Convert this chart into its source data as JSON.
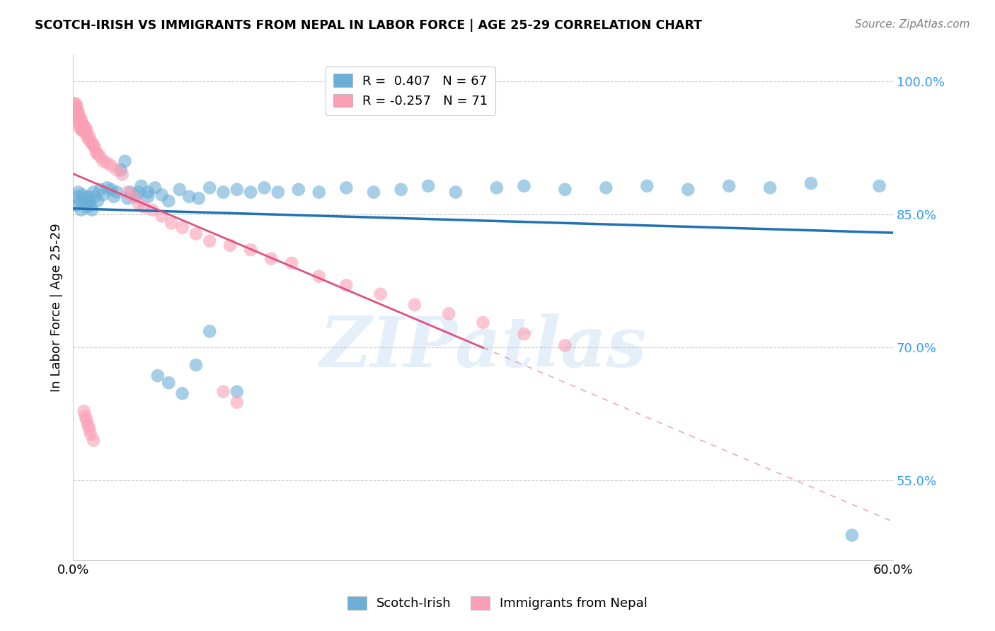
{
  "title": "SCOTCH-IRISH VS IMMIGRANTS FROM NEPAL IN LABOR FORCE | AGE 25-29 CORRELATION CHART",
  "source": "Source: ZipAtlas.com",
  "ylabel": "In Labor Force | Age 25-29",
  "xlim": [
    0.0,
    0.6
  ],
  "ylim": [
    0.46,
    1.03
  ],
  "yticks": [
    0.55,
    0.7,
    0.85,
    1.0
  ],
  "ytick_labels": [
    "55.0%",
    "70.0%",
    "85.0%",
    "100.0%"
  ],
  "xtick_labels": [
    "0.0%",
    "",
    "",
    "",
    "",
    "",
    "60.0%"
  ],
  "legend_blue_label": "R =  0.407   N = 67",
  "legend_pink_label": "R = -0.257   N = 71",
  "blue_color": "#6baed6",
  "blue_line_color": "#2171b5",
  "pink_color": "#fa9fb5",
  "pink_line_color": "#e05080",
  "watermark": "ZIPatlas",
  "blue_scatter_x": [
    0.002,
    0.003,
    0.004,
    0.005,
    0.006,
    0.007,
    0.008,
    0.009,
    0.01,
    0.011,
    0.012,
    0.013,
    0.014,
    0.015,
    0.016,
    0.018,
    0.02,
    0.022,
    0.025,
    0.028,
    0.032,
    0.035,
    0.038,
    0.042,
    0.046,
    0.05,
    0.055,
    0.06,
    0.065,
    0.07,
    0.078,
    0.085,
    0.092,
    0.1,
    0.11,
    0.12,
    0.13,
    0.14,
    0.15,
    0.165,
    0.18,
    0.2,
    0.22,
    0.24,
    0.26,
    0.28,
    0.31,
    0.33,
    0.36,
    0.39,
    0.42,
    0.45,
    0.48,
    0.51,
    0.54,
    0.57,
    0.59,
    0.03,
    0.04,
    0.048,
    0.055,
    0.062,
    0.07,
    0.08,
    0.09,
    0.1,
    0.12
  ],
  "blue_scatter_y": [
    0.86,
    0.87,
    0.875,
    0.865,
    0.855,
    0.872,
    0.868,
    0.862,
    0.858,
    0.87,
    0.865,
    0.86,
    0.855,
    0.875,
    0.87,
    0.865,
    0.878,
    0.872,
    0.88,
    0.878,
    0.875,
    0.9,
    0.91,
    0.875,
    0.87,
    0.882,
    0.875,
    0.88,
    0.872,
    0.865,
    0.878,
    0.87,
    0.868,
    0.88,
    0.875,
    0.878,
    0.875,
    0.88,
    0.875,
    0.878,
    0.875,
    0.88,
    0.875,
    0.878,
    0.882,
    0.875,
    0.88,
    0.882,
    0.878,
    0.88,
    0.882,
    0.878,
    0.882,
    0.88,
    0.885,
    0.488,
    0.882,
    0.87,
    0.868,
    0.875,
    0.87,
    0.668,
    0.66,
    0.648,
    0.68,
    0.718,
    0.65
  ],
  "pink_scatter_x": [
    0.001,
    0.001,
    0.002,
    0.002,
    0.002,
    0.003,
    0.003,
    0.003,
    0.003,
    0.004,
    0.004,
    0.004,
    0.005,
    0.005,
    0.005,
    0.006,
    0.006,
    0.006,
    0.007,
    0.007,
    0.008,
    0.008,
    0.009,
    0.009,
    0.01,
    0.01,
    0.011,
    0.012,
    0.013,
    0.014,
    0.015,
    0.016,
    0.017,
    0.018,
    0.02,
    0.022,
    0.025,
    0.028,
    0.032,
    0.036,
    0.04,
    0.044,
    0.048,
    0.052,
    0.058,
    0.065,
    0.072,
    0.08,
    0.09,
    0.1,
    0.115,
    0.13,
    0.145,
    0.16,
    0.18,
    0.2,
    0.225,
    0.25,
    0.275,
    0.3,
    0.33,
    0.36,
    0.12,
    0.11,
    0.008,
    0.009,
    0.01,
    0.011,
    0.012,
    0.013,
    0.015
  ],
  "pink_scatter_y": [
    0.97,
    0.975,
    0.965,
    0.97,
    0.975,
    0.958,
    0.965,
    0.968,
    0.972,
    0.955,
    0.96,
    0.965,
    0.948,
    0.952,
    0.958,
    0.945,
    0.95,
    0.958,
    0.945,
    0.952,
    0.945,
    0.95,
    0.942,
    0.948,
    0.94,
    0.945,
    0.935,
    0.938,
    0.932,
    0.93,
    0.928,
    0.925,
    0.92,
    0.918,
    0.915,
    0.91,
    0.908,
    0.905,
    0.9,
    0.895,
    0.875,
    0.87,
    0.862,
    0.858,
    0.855,
    0.848,
    0.84,
    0.835,
    0.828,
    0.82,
    0.815,
    0.81,
    0.8,
    0.795,
    0.78,
    0.77,
    0.76,
    0.748,
    0.738,
    0.728,
    0.715,
    0.702,
    0.638,
    0.65,
    0.628,
    0.622,
    0.618,
    0.612,
    0.608,
    0.602,
    0.595
  ]
}
